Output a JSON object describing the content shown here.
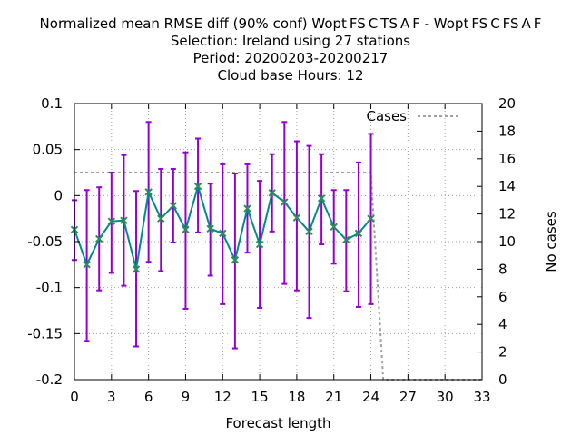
{
  "chart_data": {
    "type": "line",
    "title_lines": [
      "Normalized mean RMSE diff (90% conf) Wopt FS C TS A F - Wopt FS C FS A F",
      "Selection: Ireland using    27 stations",
      "Period: 20200203-20200217",
      "Cloud base   Hours:  12"
    ],
    "xlabel": "Forecast length",
    "ylabel_right": "No cases",
    "xlim": [
      0,
      33
    ],
    "ylim": [
      -0.2,
      0.1
    ],
    "y2lim": [
      0,
      20
    ],
    "x_ticks": [
      0,
      3,
      6,
      9,
      12,
      15,
      18,
      21,
      24,
      27,
      30,
      33
    ],
    "y_ticks": [
      0.1,
      0.05,
      0,
      -0.05,
      -0.1,
      -0.15,
      -0.2
    ],
    "y_tick_labels": [
      "0.1",
      "0.05",
      "0",
      "-0.05",
      "-0.1",
      "-0.15",
      "-0.2"
    ],
    "y2_ticks": [
      0,
      2,
      4,
      6,
      8,
      10,
      12,
      14,
      16,
      18,
      20
    ],
    "grid": true,
    "legend": {
      "position": "top-right",
      "entries": [
        "Cases"
      ]
    },
    "colors": {
      "mean": "#008b8b",
      "errorbar": "#9400d3",
      "cases": "#a0a0a0",
      "point": "#2e8b57"
    },
    "series": [
      {
        "kind": "mean_with_ci",
        "x": [
          0,
          1,
          2,
          3,
          4,
          5,
          6,
          7,
          8,
          9,
          10,
          11,
          12,
          13,
          14,
          15,
          16,
          17,
          18,
          19,
          20,
          21,
          22,
          23,
          24
        ],
        "values": [
          -0.037,
          -0.075,
          -0.047,
          -0.028,
          -0.027,
          -0.08,
          0.004,
          -0.025,
          -0.011,
          -0.037,
          0.01,
          -0.036,
          -0.041,
          -0.07,
          -0.014,
          -0.053,
          0.003,
          -0.007,
          -0.024,
          -0.039,
          -0.003,
          -0.034,
          -0.048,
          -0.041,
          -0.025
        ],
        "lower": [
          -0.07,
          -0.158,
          -0.103,
          -0.084,
          -0.098,
          -0.164,
          -0.072,
          -0.082,
          -0.051,
          -0.123,
          -0.04,
          -0.087,
          -0.118,
          -0.166,
          -0.062,
          -0.122,
          -0.039,
          -0.096,
          -0.103,
          -0.133,
          -0.053,
          -0.074,
          -0.104,
          -0.121,
          -0.118
        ],
        "upper": [
          -0.005,
          0.006,
          0.009,
          0.025,
          0.044,
          0.005,
          0.08,
          0.029,
          0.029,
          0.047,
          0.062,
          0.013,
          0.034,
          0.024,
          0.034,
          0.016,
          0.045,
          0.08,
          0.059,
          0.054,
          0.045,
          0.006,
          0.006,
          0.036,
          0.067
        ]
      },
      {
        "name": "Cases",
        "kind": "cases",
        "axis": "y2",
        "x": [
          0,
          24,
          25,
          33
        ],
        "values": [
          15,
          15,
          0,
          0
        ]
      }
    ]
  }
}
